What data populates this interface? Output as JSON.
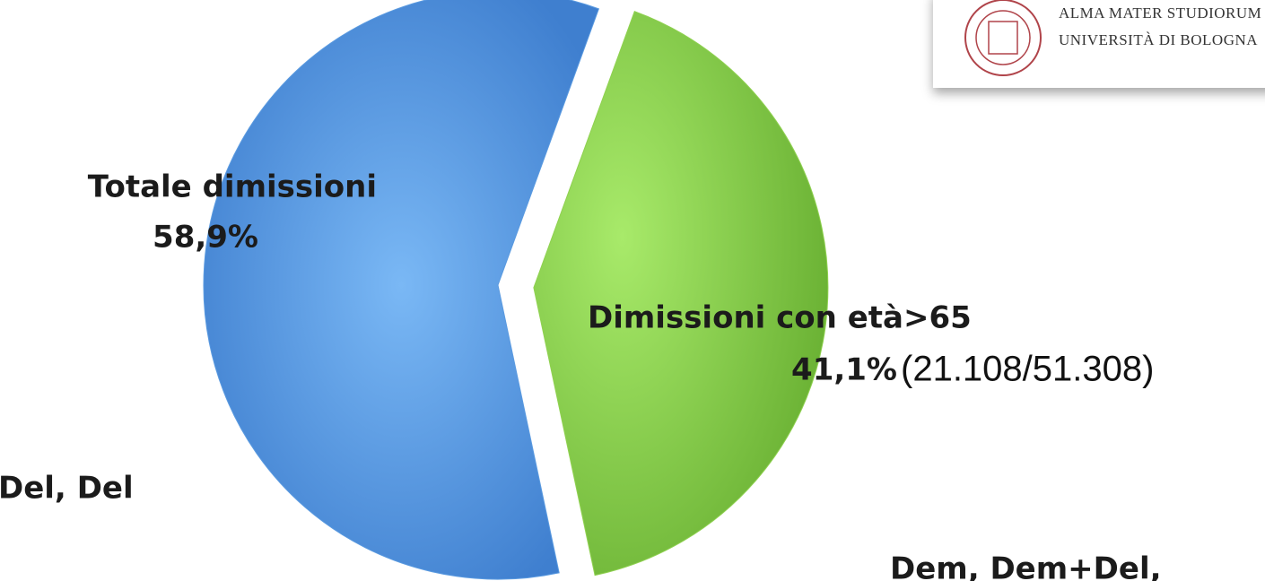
{
  "chart_data": {
    "type": "pie",
    "categories": [
      "Totale dimissioni",
      "Dimissioni con età>65"
    ],
    "values": [
      58.9,
      41.1
    ],
    "value_labels": [
      "58,9%",
      "41,1%"
    ],
    "colors": [
      "#5a9ae0",
      "#8fd150"
    ],
    "annotations": [
      "(21.108/51.308)",
      "Del, Del",
      "Dem, Dem+Del,"
    ]
  },
  "logo": {
    "line1": "ALMA MATER STUDIORUM",
    "line2": "UNIVERSITÀ DI BOLOGNA"
  }
}
